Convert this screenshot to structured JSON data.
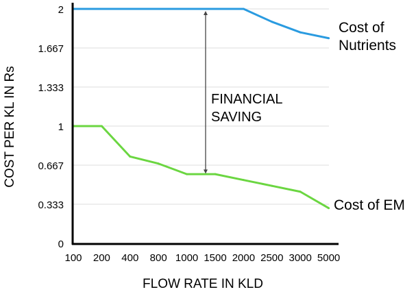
{
  "chart_data": {
    "type": "line",
    "xlabel": "FLOW RATE IN KLD",
    "ylabel": "COST PER KL IN Rs",
    "categories": [
      "100",
      "200",
      "400",
      "800",
      "1000",
      "1500",
      "2000",
      "2500",
      "3000",
      "5000"
    ],
    "yticks": [
      "0",
      "0.333",
      "0.667",
      "1",
      "1.333",
      "1.667",
      "2"
    ],
    "ytick_values": [
      0,
      0.333,
      0.667,
      1,
      1.333,
      1.667,
      2
    ],
    "ylim": [
      0,
      2
    ],
    "grid": true,
    "series": [
      {
        "name": "Cost of Nutrients",
        "label_lines": [
          "Cost of",
          "Nutrients"
        ],
        "color": "#2a9be0",
        "values": [
          2,
          2,
          2,
          2,
          2,
          2,
          2,
          1.89,
          1.8,
          1.75
        ]
      },
      {
        "name": "Cost of EM",
        "label_lines": [
          "Cost of EM"
        ],
        "color": "#6bd641",
        "values": [
          1,
          1,
          0.74,
          0.68,
          0.59,
          0.59,
          0.54,
          0.49,
          0.44,
          0.3
        ]
      }
    ],
    "annotation": {
      "lines": [
        "FINANCIAL",
        "SAVING"
      ],
      "from": 2,
      "to": 0.6
    }
  }
}
